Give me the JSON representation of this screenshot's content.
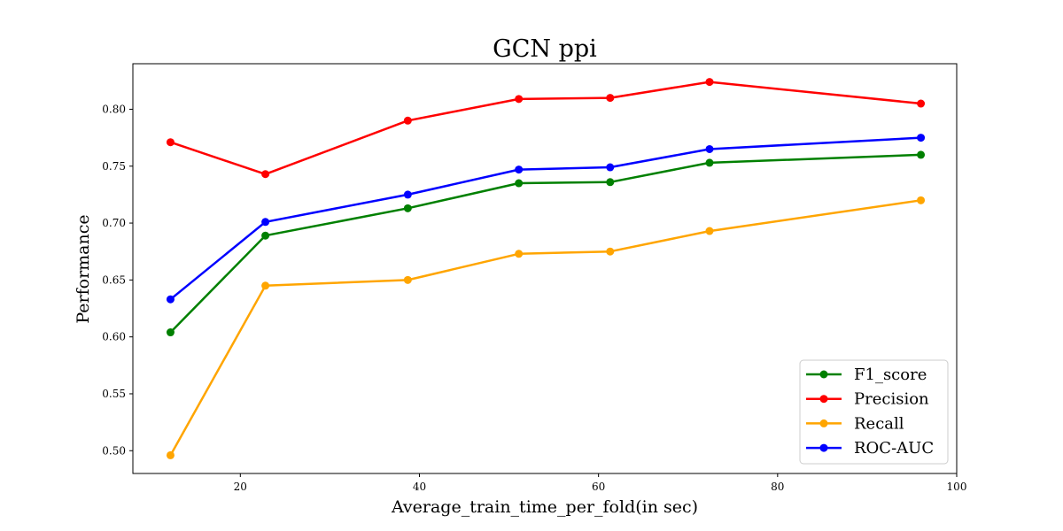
{
  "chart_data": {
    "type": "line",
    "title": "GCN ppi",
    "xlabel": "Average_train_time_per_fold(in sec)",
    "ylabel": "Performance",
    "xlim": [
      8,
      100
    ],
    "ylim": [
      0.48,
      0.84
    ],
    "xticks": [
      20,
      40,
      60,
      80,
      100
    ],
    "yticks": [
      0.5,
      0.55,
      0.6,
      0.65,
      0.7,
      0.75,
      0.8
    ],
    "grid": false,
    "legend_position": "lower-right",
    "x": [
      12.2,
      22.8,
      38.7,
      51.1,
      61.3,
      72.4,
      96.0
    ],
    "series": [
      {
        "name": "F1_score",
        "color": "#008000",
        "values": [
          0.604,
          0.689,
          0.713,
          0.735,
          0.736,
          0.753,
          0.76
        ]
      },
      {
        "name": "Precision",
        "color": "#ff0000",
        "values": [
          0.771,
          0.743,
          0.79,
          0.809,
          0.81,
          0.824,
          0.805
        ]
      },
      {
        "name": "Recall",
        "color": "#ffa500",
        "values": [
          0.496,
          0.645,
          0.65,
          0.673,
          0.675,
          0.693,
          0.72
        ]
      },
      {
        "name": "ROC-AUC",
        "color": "#0000ff",
        "values": [
          0.633,
          0.701,
          0.725,
          0.747,
          0.749,
          0.765,
          0.775
        ]
      }
    ]
  }
}
